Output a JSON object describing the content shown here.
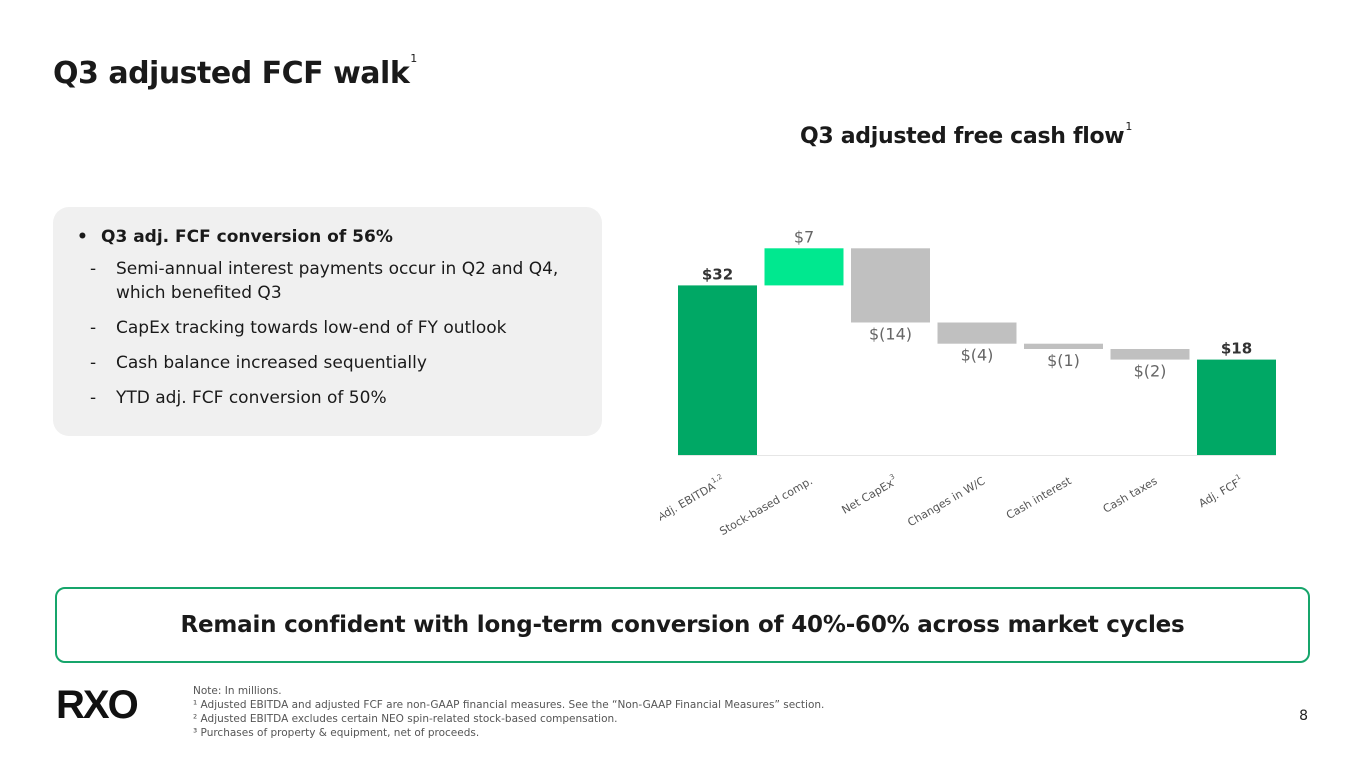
{
  "title": {
    "text": "Q3 adjusted FCF walk",
    "footnote": "1"
  },
  "chart_header": {
    "text": "Q3 adjusted free cash flow",
    "footnote": "1"
  },
  "bullets": {
    "main": "Q3 adj. FCF conversion of 56%",
    "sub": [
      "Semi-annual interest payments occur in Q2 and Q4, which benefited Q3",
      "CapEx tracking towards low-end of FY outlook",
      "Cash balance increased sequentially",
      "YTD adj. FCF conversion of 50%"
    ]
  },
  "callout": "Remain confident with long-term conversion of 40%-60% across market cycles",
  "logo": "RXO",
  "notes": [
    "Note: In millions.",
    "¹ Adjusted EBITDA and adjusted FCF are non-GAAP financial measures. See the “Non-GAAP Financial Measures” section.",
    "² Adjusted EBITDA excludes certain NEO spin-related stock-based compensation.",
    "³ Purchases of property & equipment, net of proceeds."
  ],
  "page_number": "8",
  "colors": {
    "total": "#00a865",
    "increase": "#00e88f",
    "decrease": "#c0c0c0",
    "accent_border": "#16a56b"
  },
  "chart_data": {
    "type": "waterfall",
    "title": "Q3 adjusted free cash flow",
    "unit": "$ millions",
    "categories": [
      "Adj. EBITDA",
      "Stock-based comp.",
      "Net CapEx",
      "Changes in W/C",
      "Cash interest",
      "Cash taxes",
      "Adj. FCF"
    ],
    "category_footnotes": [
      "1,2",
      "",
      "3",
      "",
      "",
      "",
      "1"
    ],
    "values": [
      32,
      7,
      -14,
      -4,
      -1,
      -2,
      18
    ],
    "kinds": [
      "total",
      "increase",
      "decrease",
      "decrease",
      "decrease",
      "decrease",
      "total"
    ],
    "labels": [
      "$32",
      "$7",
      "$(14)",
      "$(4)",
      "$(1)",
      "$(2)",
      "$18"
    ],
    "ylim": [
      0,
      40
    ]
  }
}
